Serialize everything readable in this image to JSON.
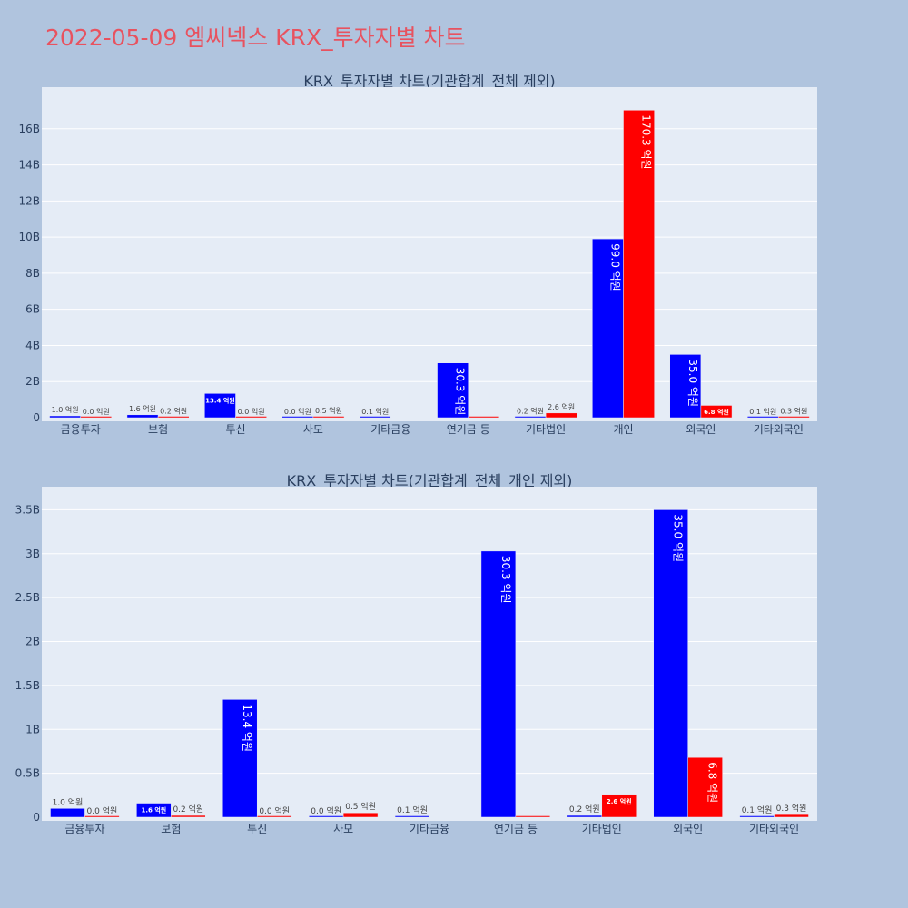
{
  "page": {
    "title": "2022-05-09 엠씨넥스 KRX_투자자별 차트",
    "title_color": "#e8525f",
    "background": "#b0c4de",
    "plot_background": "#e5ecf6"
  },
  "chart_data": [
    {
      "type": "bar",
      "title": "KRX_투자자별 차트(기관합계_전체 제외)",
      "categories": [
        "금융투자",
        "보험",
        "투신",
        "사모",
        "기타금융",
        "연기금 등",
        "기타법인",
        "개인",
        "외국인",
        "기타외국인"
      ],
      "series": [
        {
          "color": "#0000ff",
          "values": [
            100000000,
            160000000,
            1340000000,
            0,
            10000000,
            3030000000,
            20000000,
            9900000000,
            3500000000,
            10000000
          ],
          "labels": [
            "1.0 억원",
            "1.6 억원",
            "13.4 억원",
            "0.0 억원",
            "0.1 억원",
            "30.3 억원",
            "0.2 억원",
            "99.0 억원",
            "35.0 억원",
            "0.1 억원"
          ]
        },
        {
          "color": "#ff0000",
          "values": [
            0,
            20000000,
            0,
            50000000,
            null,
            0,
            260000000,
            17030000000,
            680000000,
            30000000
          ],
          "labels": [
            "0.0 억원",
            "0.2 억원",
            "0.0 억원",
            "0.5 억원",
            "",
            "",
            "2.6 억원",
            "170.3 억원",
            "6.8 억원",
            "0.3 억원"
          ]
        }
      ],
      "yticks": [
        0,
        2000000000,
        4000000000,
        6000000000,
        8000000000,
        10000000000,
        12000000000,
        14000000000,
        16000000000
      ],
      "ytick_labels": [
        "0",
        "2B",
        "4B",
        "6B",
        "8B",
        "10B",
        "12B",
        "14B",
        "16B"
      ],
      "ylim": [
        0,
        17900000000
      ],
      "grid": true,
      "legend": "none"
    },
    {
      "type": "bar",
      "title": "KRX_투자자별 차트(기관합계_전체_개인 제외)",
      "categories": [
        "금융투자",
        "보험",
        "투신",
        "사모",
        "기타금융",
        "연기금 등",
        "기타법인",
        "외국인",
        "기타외국인"
      ],
      "series": [
        {
          "color": "#0000ff",
          "values": [
            100000000,
            160000000,
            1340000000,
            0,
            10000000,
            3030000000,
            20000000,
            3500000000,
            10000000
          ],
          "labels": [
            "1.0 억원",
            "1.6 억원",
            "13.4 억원",
            "0.0 억원",
            "0.1 억원",
            "30.3 억원",
            "0.2 억원",
            "35.0 억원",
            "0.1 억원"
          ]
        },
        {
          "color": "#ff0000",
          "values": [
            0,
            20000000,
            0,
            50000000,
            null,
            0,
            260000000,
            680000000,
            30000000
          ],
          "labels": [
            "0.0 억원",
            "0.2 억원",
            "0.0 억원",
            "0.5 억원",
            "",
            "",
            "2.6 억원",
            "6.8 억원",
            "0.3 억원"
          ]
        }
      ],
      "yticks": [
        0,
        500000000,
        1000000000,
        1500000000,
        2000000000,
        2500000000,
        3000000000,
        3500000000
      ],
      "ytick_labels": [
        "0",
        "0.5B",
        "1B",
        "1.5B",
        "2B",
        "2.5B",
        "3B",
        "3.5B"
      ],
      "ylim": [
        0,
        3680000000
      ],
      "grid": true,
      "legend": "none"
    }
  ]
}
